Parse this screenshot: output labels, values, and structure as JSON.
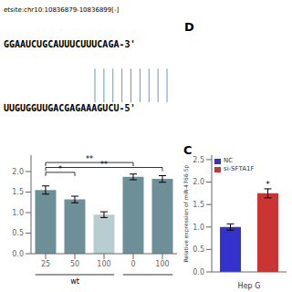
{
  "header": {
    "text": "etsite:chr10:10836879-10836899[-]",
    "sequences": [
      "GGAAUCUGCAUUUCUUUCAGA-3'",
      "UUGUGGUUGACGAGAAAGUCU-5'"
    ],
    "connector_lines": 9,
    "connector_color": "#6699cc"
  },
  "panel_labels": [
    "D",
    "C"
  ],
  "chart_data": [
    {
      "type": "bar",
      "categories": [
        "25",
        "50",
        "100",
        "0",
        "100"
      ],
      "values": [
        1.55,
        1.32,
        0.95,
        1.87,
        1.82
      ],
      "errors": [
        0.1,
        0.08,
        0.07,
        0.07,
        0.08
      ],
      "colors": [
        "#6d9098",
        "#6d9098",
        "#b8cdd0",
        "#6d9098",
        "#6d9098"
      ],
      "ylim": [
        0,
        2.4
      ],
      "yticks": [
        {
          "value": 0,
          "label": "0.0"
        },
        {
          "value": 0.5,
          "label": "0.5"
        },
        {
          "value": 1,
          "label": "1.0"
        },
        {
          "value": 1.5,
          "label": "1.5"
        },
        {
          "value": 2,
          "label": "2.0"
        }
      ],
      "grid": false,
      "groups": [
        {
          "label": "wt",
          "from": 0,
          "to": 2
        },
        {
          "from": 3,
          "to": 4
        }
      ],
      "annotations": [
        {
          "text": "**",
          "from": 0,
          "to": 3,
          "y": 2.22
        },
        {
          "text": "**",
          "from": 0,
          "to": 4,
          "y": 2.1
        },
        {
          "text": "*",
          "from": 0,
          "to": 1,
          "y": 1.98
        }
      ]
    },
    {
      "type": "bar",
      "xlabel": "Hep G",
      "ylabel": "Relative expression of miR-4766-5p",
      "categories": [
        null,
        null
      ],
      "series": [
        {
          "name": "NC",
          "color": "#3333cc",
          "values": [
            1.0,
            null
          ],
          "errors": [
            0.07,
            null
          ]
        },
        {
          "name": "si-SFTA1F",
          "color": "#cc3333",
          "values": [
            null,
            1.75
          ],
          "errors": [
            null,
            0.1
          ]
        }
      ],
      "ylim": [
        0,
        2.6
      ],
      "yticks": [
        {
          "value": 0,
          "label": "0.0"
        },
        {
          "value": 0.5,
          "label": "0.5"
        },
        {
          "value": 1,
          "label": "1.0"
        },
        {
          "value": 1.5,
          "label": "1.5"
        },
        {
          "value": 2,
          "label": "2.0"
        },
        {
          "value": 2.5,
          "label": "2.5"
        }
      ],
      "grid": false,
      "legend": "upper left",
      "tick_labels": "y",
      "annotations": [
        {
          "text": "*",
          "x": 1,
          "y": 1.88
        }
      ]
    }
  ]
}
